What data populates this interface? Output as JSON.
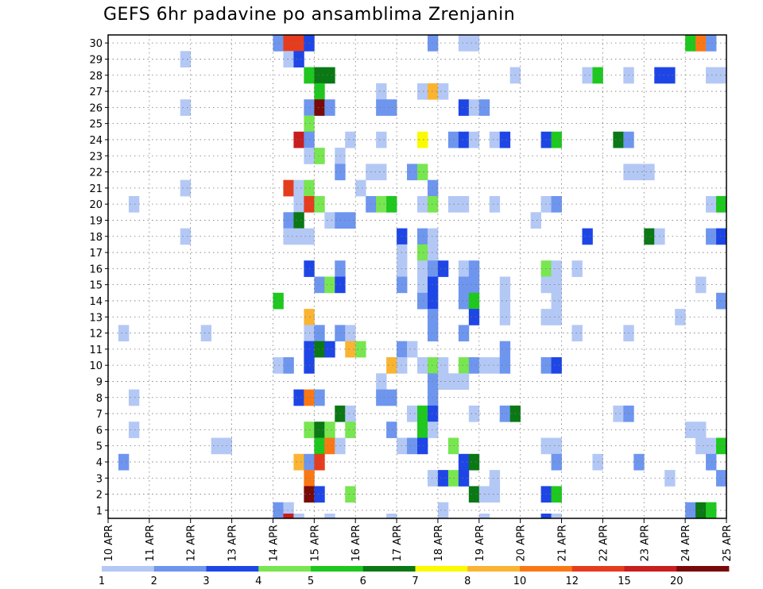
{
  "chart_data": {
    "type": "heatmap",
    "title": "GEFS 6hr padavine po ansamblima Zrenjanin",
    "x_tick_labels": [
      "10 APR",
      "11 APR",
      "12 APR",
      "13 APR",
      "14 APR",
      "15 APR",
      "16 APR",
      "17 APR",
      "18 APR",
      "19 APR",
      "20 APR",
      "21 APR",
      "22 APR",
      "23 APR",
      "24 APR",
      "25 APR"
    ],
    "y_tick_labels": [
      "1",
      "2",
      "3",
      "4",
      "5",
      "6",
      "7",
      "8",
      "9",
      "10",
      "11",
      "12",
      "13",
      "14",
      "15",
      "16",
      "17",
      "18",
      "19",
      "20",
      "21",
      "22",
      "23",
      "24",
      "25",
      "26",
      "27",
      "28",
      "29",
      "30"
    ],
    "time_steps": 60,
    "steps_per_day": 4,
    "members": 30,
    "grid": true,
    "legend_position": "bottom",
    "color_levels": [
      {
        "label": "1",
        "color": "#b4c8f5"
      },
      {
        "label": "2",
        "color": "#6e96ee"
      },
      {
        "label": "3",
        "color": "#1e46e6"
      },
      {
        "label": "4",
        "color": "#78e650"
      },
      {
        "label": "5",
        "color": "#1ec81e"
      },
      {
        "label": "6",
        "color": "#0a7814"
      },
      {
        "label": "7",
        "color": "#fafa00"
      },
      {
        "label": "8",
        "color": "#fab432"
      },
      {
        "label": "10",
        "color": "#fa7814"
      },
      {
        "label": "12",
        "color": "#e63c1e"
      },
      {
        "label": "15",
        "color": "#c81e1e"
      },
      {
        "label": "20",
        "color": "#780a0a"
      }
    ],
    "cells": [
      [
        30,
        16,
        2
      ],
      [
        30,
        17,
        12
      ],
      [
        30,
        18,
        12
      ],
      [
        30,
        19,
        3
      ],
      [
        30,
        31,
        2
      ],
      [
        30,
        34,
        1
      ],
      [
        30,
        35,
        1
      ],
      [
        30,
        56,
        5
      ],
      [
        30,
        57,
        10
      ],
      [
        30,
        58,
        2
      ],
      [
        29,
        7,
        1
      ],
      [
        29,
        17,
        1
      ],
      [
        29,
        18,
        3
      ],
      [
        28,
        19,
        5
      ],
      [
        28,
        20,
        6
      ],
      [
        28,
        21,
        6
      ],
      [
        28,
        39,
        1
      ],
      [
        28,
        46,
        1
      ],
      [
        28,
        47,
        5
      ],
      [
        28,
        50,
        1
      ],
      [
        28,
        53,
        3
      ],
      [
        28,
        54,
        3
      ],
      [
        28,
        58,
        1
      ],
      [
        28,
        59,
        1
      ],
      [
        27,
        20,
        5
      ],
      [
        27,
        26,
        1
      ],
      [
        27,
        30,
        1
      ],
      [
        27,
        31,
        8
      ],
      [
        27,
        32,
        1
      ],
      [
        26,
        7,
        1
      ],
      [
        26,
        19,
        2
      ],
      [
        26,
        20,
        20
      ],
      [
        26,
        21,
        2
      ],
      [
        26,
        26,
        2
      ],
      [
        26,
        27,
        2
      ],
      [
        26,
        34,
        3
      ],
      [
        26,
        35,
        1
      ],
      [
        26,
        36,
        2
      ],
      [
        25,
        19,
        4
      ],
      [
        24,
        18,
        15
      ],
      [
        24,
        19,
        2
      ],
      [
        24,
        23,
        1
      ],
      [
        24,
        26,
        1
      ],
      [
        24,
        30,
        7
      ],
      [
        24,
        33,
        2
      ],
      [
        24,
        34,
        3
      ],
      [
        24,
        35,
        1
      ],
      [
        24,
        37,
        1
      ],
      [
        24,
        38,
        3
      ],
      [
        24,
        42,
        3
      ],
      [
        24,
        43,
        5
      ],
      [
        24,
        49,
        6
      ],
      [
        24,
        50,
        2
      ],
      [
        23,
        19,
        1
      ],
      [
        23,
        20,
        4
      ],
      [
        23,
        22,
        1
      ],
      [
        22,
        22,
        2
      ],
      [
        22,
        25,
        1
      ],
      [
        22,
        26,
        1
      ],
      [
        22,
        29,
        2
      ],
      [
        22,
        30,
        4
      ],
      [
        22,
        50,
        1
      ],
      [
        22,
        51,
        1
      ],
      [
        22,
        52,
        1
      ],
      [
        21,
        7,
        1
      ],
      [
        21,
        17,
        12
      ],
      [
        21,
        18,
        1
      ],
      [
        21,
        19,
        4
      ],
      [
        21,
        24,
        1
      ],
      [
        21,
        31,
        2
      ],
      [
        20,
        2,
        1
      ],
      [
        20,
        18,
        1
      ],
      [
        20,
        19,
        12
      ],
      [
        20,
        20,
        4
      ],
      [
        20,
        25,
        2
      ],
      [
        20,
        26,
        4
      ],
      [
        20,
        27,
        5
      ],
      [
        20,
        30,
        1
      ],
      [
        20,
        31,
        4
      ],
      [
        20,
        33,
        1
      ],
      [
        20,
        34,
        1
      ],
      [
        20,
        37,
        1
      ],
      [
        20,
        42,
        1
      ],
      [
        20,
        43,
        2
      ],
      [
        20,
        58,
        1
      ],
      [
        20,
        59,
        5
      ],
      [
        19,
        17,
        2
      ],
      [
        19,
        18,
        6
      ],
      [
        19,
        21,
        1
      ],
      [
        19,
        22,
        2
      ],
      [
        19,
        23,
        2
      ],
      [
        19,
        41,
        1
      ],
      [
        18,
        7,
        1
      ],
      [
        18,
        17,
        1
      ],
      [
        18,
        18,
        1
      ],
      [
        18,
        19,
        1
      ],
      [
        18,
        28,
        3
      ],
      [
        18,
        30,
        2
      ],
      [
        18,
        31,
        1
      ],
      [
        18,
        46,
        3
      ],
      [
        18,
        52,
        6
      ],
      [
        18,
        53,
        1
      ],
      [
        18,
        58,
        2
      ],
      [
        18,
        59,
        3
      ],
      [
        17,
        28,
        1
      ],
      [
        17,
        30,
        4
      ],
      [
        17,
        31,
        1
      ],
      [
        16,
        19,
        3
      ],
      [
        16,
        22,
        2
      ],
      [
        16,
        28,
        1
      ],
      [
        16,
        30,
        1
      ],
      [
        16,
        31,
        2
      ],
      [
        16,
        32,
        3
      ],
      [
        16,
        34,
        1
      ],
      [
        16,
        35,
        2
      ],
      [
        16,
        42,
        4
      ],
      [
        16,
        43,
        1
      ],
      [
        16,
        45,
        1
      ],
      [
        15,
        20,
        2
      ],
      [
        15,
        21,
        4
      ],
      [
        15,
        22,
        3
      ],
      [
        15,
        28,
        2
      ],
      [
        15,
        30,
        1
      ],
      [
        15,
        31,
        3
      ],
      [
        15,
        34,
        2
      ],
      [
        15,
        35,
        2
      ],
      [
        15,
        38,
        1
      ],
      [
        15,
        42,
        1
      ],
      [
        15,
        43,
        1
      ],
      [
        15,
        57,
        1
      ],
      [
        14,
        16,
        5
      ],
      [
        14,
        30,
        2
      ],
      [
        14,
        31,
        3
      ],
      [
        14,
        34,
        2
      ],
      [
        14,
        35,
        5
      ],
      [
        14,
        38,
        1
      ],
      [
        14,
        43,
        1
      ],
      [
        14,
        59,
        2
      ],
      [
        13,
        19,
        8
      ],
      [
        13,
        31,
        2
      ],
      [
        13,
        35,
        3
      ],
      [
        13,
        38,
        1
      ],
      [
        13,
        42,
        1
      ],
      [
        13,
        43,
        1
      ],
      [
        13,
        55,
        1
      ],
      [
        12,
        1,
        1
      ],
      [
        12,
        9,
        1
      ],
      [
        12,
        19,
        1
      ],
      [
        12,
        20,
        2
      ],
      [
        12,
        22,
        2
      ],
      [
        12,
        23,
        1
      ],
      [
        12,
        31,
        2
      ],
      [
        12,
        34,
        2
      ],
      [
        12,
        45,
        1
      ],
      [
        12,
        50,
        1
      ],
      [
        11,
        19,
        3
      ],
      [
        11,
        20,
        6
      ],
      [
        11,
        21,
        3
      ],
      [
        11,
        23,
        8
      ],
      [
        11,
        24,
        4
      ],
      [
        11,
        28,
        2
      ],
      [
        11,
        29,
        1
      ],
      [
        11,
        38,
        2
      ],
      [
        10,
        16,
        1
      ],
      [
        10,
        17,
        2
      ],
      [
        10,
        19,
        3
      ],
      [
        10,
        27,
        8
      ],
      [
        10,
        28,
        1
      ],
      [
        10,
        30,
        1
      ],
      [
        10,
        31,
        4
      ],
      [
        10,
        32,
        1
      ],
      [
        10,
        34,
        4
      ],
      [
        10,
        35,
        2
      ],
      [
        10,
        36,
        1
      ],
      [
        10,
        37,
        1
      ],
      [
        10,
        38,
        2
      ],
      [
        10,
        42,
        2
      ],
      [
        10,
        43,
        3
      ],
      [
        9,
        26,
        1
      ],
      [
        9,
        31,
        2
      ],
      [
        9,
        32,
        1
      ],
      [
        9,
        33,
        1
      ],
      [
        9,
        34,
        1
      ],
      [
        8,
        2,
        1
      ],
      [
        8,
        18,
        3
      ],
      [
        8,
        19,
        10
      ],
      [
        8,
        20,
        2
      ],
      [
        8,
        26,
        2
      ],
      [
        8,
        27,
        2
      ],
      [
        8,
        31,
        2
      ],
      [
        7,
        22,
        6
      ],
      [
        7,
        23,
        1
      ],
      [
        7,
        29,
        1
      ],
      [
        7,
        30,
        5
      ],
      [
        7,
        31,
        3
      ],
      [
        7,
        35,
        1
      ],
      [
        7,
        38,
        2
      ],
      [
        7,
        39,
        6
      ],
      [
        7,
        49,
        1
      ],
      [
        7,
        50,
        2
      ],
      [
        6,
        2,
        1
      ],
      [
        6,
        19,
        4
      ],
      [
        6,
        20,
        6
      ],
      [
        6,
        21,
        4
      ],
      [
        6,
        23,
        4
      ],
      [
        6,
        27,
        2
      ],
      [
        6,
        30,
        5
      ],
      [
        6,
        31,
        1
      ],
      [
        6,
        56,
        1
      ],
      [
        6,
        57,
        1
      ],
      [
        5,
        10,
        1
      ],
      [
        5,
        11,
        1
      ],
      [
        5,
        20,
        5
      ],
      [
        5,
        21,
        10
      ],
      [
        5,
        22,
        1
      ],
      [
        5,
        28,
        1
      ],
      [
        5,
        29,
        2
      ],
      [
        5,
        30,
        3
      ],
      [
        5,
        33,
        4
      ],
      [
        5,
        42,
        1
      ],
      [
        5,
        43,
        1
      ],
      [
        5,
        57,
        1
      ],
      [
        5,
        58,
        1
      ],
      [
        5,
        59,
        5
      ],
      [
        4,
        1,
        2
      ],
      [
        4,
        18,
        8
      ],
      [
        4,
        19,
        2
      ],
      [
        4,
        20,
        12
      ],
      [
        4,
        34,
        3
      ],
      [
        4,
        35,
        6
      ],
      [
        4,
        43,
        2
      ],
      [
        4,
        47,
        1
      ],
      [
        4,
        51,
        2
      ],
      [
        4,
        58,
        2
      ],
      [
        3,
        19,
        10
      ],
      [
        3,
        31,
        1
      ],
      [
        3,
        32,
        3
      ],
      [
        3,
        33,
        4
      ],
      [
        3,
        34,
        3
      ],
      [
        3,
        37,
        1
      ],
      [
        3,
        54,
        1
      ],
      [
        3,
        59,
        2
      ],
      [
        2,
        19,
        20
      ],
      [
        2,
        20,
        3
      ],
      [
        2,
        23,
        4
      ],
      [
        2,
        35,
        6
      ],
      [
        2,
        36,
        1
      ],
      [
        2,
        37,
        1
      ],
      [
        2,
        42,
        3
      ],
      [
        2,
        43,
        5
      ],
      [
        1,
        16,
        2
      ],
      [
        1,
        17,
        1
      ],
      [
        1,
        32,
        1
      ],
      [
        1,
        56,
        2
      ],
      [
        1,
        57,
        6
      ],
      [
        1,
        58,
        5
      ]
    ],
    "bottom_row_cells": [
      [
        17,
        15
      ],
      [
        18,
        1
      ],
      [
        21,
        1
      ],
      [
        27,
        1
      ],
      [
        36,
        1
      ],
      [
        42,
        3
      ],
      [
        43,
        1
      ]
    ]
  }
}
